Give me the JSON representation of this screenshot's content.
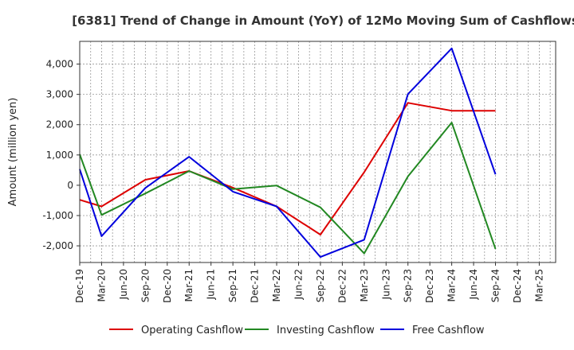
{
  "chart_data": {
    "type": "line",
    "title": "[6381]  Trend of Change in Amount (YoY) of 12Mo Moving Sum of Cashflows",
    "xlabel": "",
    "ylabel": "Amount (million yen)",
    "ylim": [
      -2550,
      4750
    ],
    "yticks": [
      -2000,
      -1000,
      0,
      1000,
      2000,
      3000,
      4000
    ],
    "ytick_labels": [
      "-2,000",
      "-1,000",
      "0",
      "1,000",
      "2,000",
      "3,000",
      "4,000"
    ],
    "grid": true,
    "legend_position": "bottom",
    "categories": [
      "Dec-19",
      "Mar-20",
      "Jun-20",
      "Sep-20",
      "Dec-20",
      "Mar-21",
      "Jun-21",
      "Sep-21",
      "Dec-21",
      "Mar-22",
      "Jun-22",
      "Sep-22",
      "Dec-22",
      "Mar-23",
      "Jun-23",
      "Sep-23",
      "Dec-23",
      "Mar-24",
      "Jun-24",
      "Sep-24",
      "Dec-24",
      "Mar-25"
    ],
    "series": [
      {
        "name": "Operating Cashflow",
        "color": "#dd0000",
        "values": [
          -480,
          -700,
          null,
          180,
          null,
          470,
          null,
          -80,
          null,
          -700,
          null,
          -1630,
          null,
          430,
          null,
          2720,
          null,
          2460,
          null,
          2460,
          null,
          null
        ]
      },
      {
        "name": "Investing Cashflow",
        "color": "#228822",
        "values": [
          1020,
          -980,
          null,
          -270,
          null,
          470,
          null,
          -130,
          null,
          -10,
          null,
          -730,
          null,
          -2250,
          null,
          290,
          null,
          2070,
          null,
          -2100,
          null,
          null
        ]
      },
      {
        "name": "Free Cashflow",
        "color": "#0000dd",
        "values": [
          530,
          -1680,
          null,
          -90,
          null,
          940,
          null,
          -210,
          null,
          -700,
          null,
          -2370,
          null,
          -1800,
          null,
          3010,
          null,
          4520,
          null,
          360,
          null,
          null
        ]
      }
    ]
  }
}
